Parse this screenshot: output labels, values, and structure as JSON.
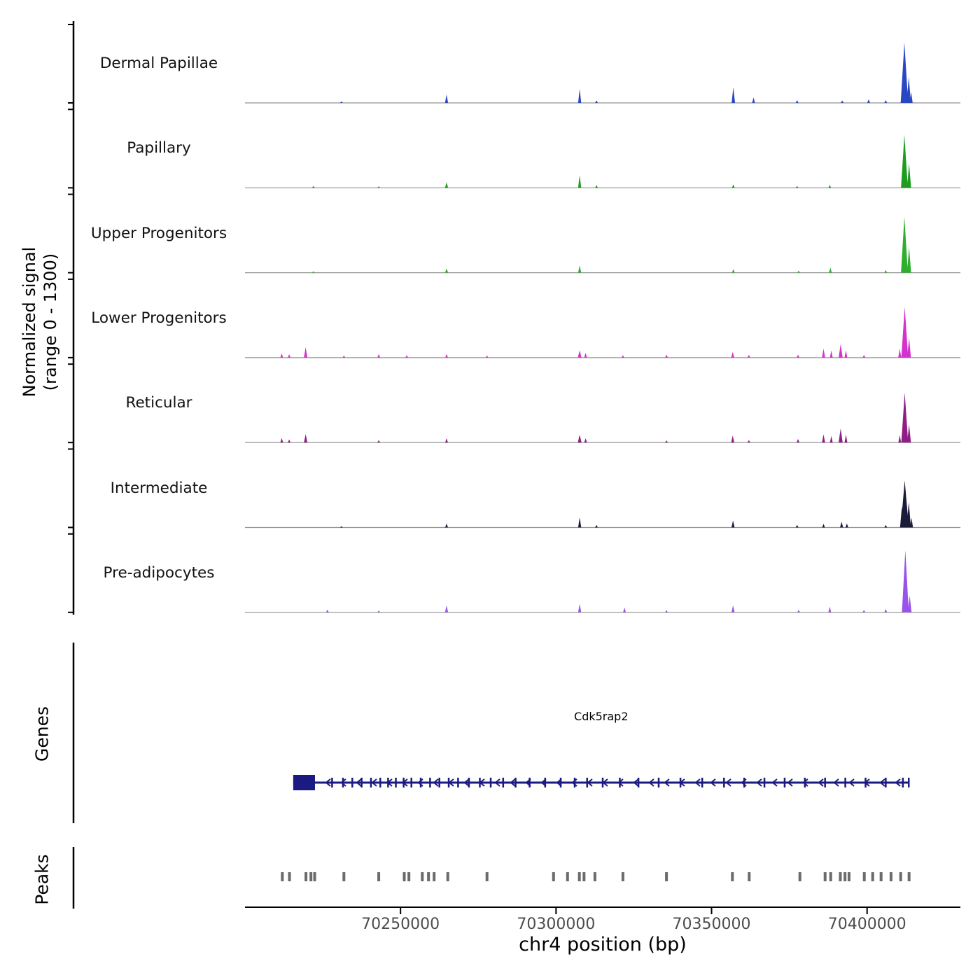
{
  "y_axis_label_line1": "Normalized signal",
  "y_axis_label_line2": "(range 0 - 1300)",
  "genes_label": "Genes",
  "peaks_label": "Peaks",
  "x_axis_label": "chr4 position (bp)",
  "chart_data": {
    "type": "area",
    "title": "",
    "genome": {
      "chrom": "chr4",
      "xmin": 70200000,
      "xmax": 70430000
    },
    "y_range": [
      0,
      1300
    ],
    "x_ticks": [
      {
        "pos": 70250000,
        "label": "70250000"
      },
      {
        "pos": 70300000,
        "label": "70300000"
      },
      {
        "pos": 70350000,
        "label": "70350000"
      },
      {
        "pos": 70400000,
        "label": "70400000"
      }
    ],
    "style": {
      "baseline_color": "#909090",
      "axis_color": "#000000",
      "tick_label_color": "#4d4d4d",
      "peak_mark_color": "#6b6b6b"
    },
    "tracks": [
      {
        "name": "Dermal Papillae",
        "color": "#2a47c3",
        "peaks": [
          [
            70231000,
            25,
            900
          ],
          [
            70264800,
            140,
            1000
          ],
          [
            70307600,
            230,
            1000
          ],
          [
            70313000,
            40,
            900
          ],
          [
            70357000,
            260,
            1100
          ],
          [
            70363500,
            90,
            900
          ],
          [
            70377500,
            45,
            900
          ],
          [
            70392000,
            40,
            900
          ],
          [
            70400500,
            60,
            900
          ],
          [
            70406000,
            45,
            900
          ],
          [
            70411300,
            250,
            1000
          ],
          [
            70412000,
            1000,
            2400
          ],
          [
            70413400,
            430,
            1400
          ],
          [
            70414200,
            180,
            900
          ]
        ]
      },
      {
        "name": "Papillary",
        "color": "#1f9c1f",
        "peaks": [
          [
            70222000,
            30,
            900
          ],
          [
            70243000,
            25,
            900
          ],
          [
            70264800,
            90,
            1000
          ],
          [
            70307600,
            210,
            1000
          ],
          [
            70313000,
            45,
            900
          ],
          [
            70357000,
            55,
            900
          ],
          [
            70377500,
            30,
            900
          ],
          [
            70388000,
            45,
            900
          ],
          [
            70412000,
            880,
            2200
          ],
          [
            70413500,
            400,
            1300
          ]
        ]
      },
      {
        "name": "Upper Progenitors",
        "color": "#2eae2e",
        "peaks": [
          [
            70222000,
            25,
            900
          ],
          [
            70264800,
            70,
            1000
          ],
          [
            70307600,
            120,
            1000
          ],
          [
            70357000,
            60,
            900
          ],
          [
            70378000,
            35,
            900
          ],
          [
            70388200,
            85,
            900
          ],
          [
            70406000,
            45,
            900
          ],
          [
            70412000,
            930,
            2200
          ],
          [
            70413500,
            420,
            1300
          ]
        ]
      },
      {
        "name": "Lower Progenitors",
        "color": "#d233cc",
        "peaks": [
          [
            70211800,
            70,
            900
          ],
          [
            70214200,
            55,
            900
          ],
          [
            70219500,
            175,
            1100
          ],
          [
            70231800,
            35,
            900
          ],
          [
            70243000,
            60,
            900
          ],
          [
            70252000,
            40,
            900
          ],
          [
            70264800,
            60,
            900
          ],
          [
            70277800,
            35,
            900
          ],
          [
            70307600,
            120,
            1200
          ],
          [
            70309500,
            80,
            900
          ],
          [
            70321500,
            40,
            900
          ],
          [
            70335500,
            50,
            900
          ],
          [
            70356800,
            95,
            1000
          ],
          [
            70362000,
            45,
            900
          ],
          [
            70377800,
            50,
            900
          ],
          [
            70386000,
            150,
            1000
          ],
          [
            70388500,
            120,
            900
          ],
          [
            70391500,
            225,
            1300
          ],
          [
            70393200,
            120,
            900
          ],
          [
            70399000,
            45,
            900
          ],
          [
            70410500,
            150,
            1000
          ],
          [
            70412100,
            840,
            2200
          ],
          [
            70413500,
            330,
            1200
          ]
        ]
      },
      {
        "name": "Reticular",
        "color": "#8f1d86",
        "peaks": [
          [
            70211800,
            75,
            900
          ],
          [
            70214200,
            50,
            900
          ],
          [
            70219500,
            140,
            1100
          ],
          [
            70243000,
            40,
            900
          ],
          [
            70264800,
            70,
            900
          ],
          [
            70307600,
            130,
            1200
          ],
          [
            70309500,
            70,
            900
          ],
          [
            70335500,
            35,
            900
          ],
          [
            70356800,
            115,
            1000
          ],
          [
            70362000,
            40,
            900
          ],
          [
            70377800,
            60,
            900
          ],
          [
            70386000,
            135,
            1000
          ],
          [
            70388500,
            110,
            900
          ],
          [
            70391500,
            235,
            1300
          ],
          [
            70393200,
            130,
            900
          ],
          [
            70410500,
            125,
            900
          ],
          [
            70412100,
            830,
            2200
          ],
          [
            70413500,
            300,
            1200
          ]
        ]
      },
      {
        "name": "Intermediate",
        "color": "#1b1b3a",
        "peaks": [
          [
            70231000,
            20,
            900
          ],
          [
            70264800,
            65,
            900
          ],
          [
            70307600,
            165,
            1000
          ],
          [
            70313000,
            40,
            900
          ],
          [
            70356900,
            115,
            1000
          ],
          [
            70377500,
            40,
            900
          ],
          [
            70386000,
            60,
            900
          ],
          [
            70391800,
            95,
            1000
          ],
          [
            70393500,
            65,
            900
          ],
          [
            70406000,
            40,
            900
          ],
          [
            70411200,
            350,
            1200
          ],
          [
            70412100,
            780,
            2600
          ],
          [
            70413400,
            420,
            1400
          ],
          [
            70414300,
            160,
            900
          ]
        ]
      },
      {
        "name": "Pre-adipocytes",
        "color": "#9a52ea",
        "peaks": [
          [
            70226500,
            45,
            900
          ],
          [
            70243000,
            30,
            900
          ],
          [
            70264800,
            115,
            1000
          ],
          [
            70307600,
            140,
            1000
          ],
          [
            70322000,
            80,
            900
          ],
          [
            70335500,
            35,
            900
          ],
          [
            70356900,
            115,
            1000
          ],
          [
            70378000,
            40,
            900
          ],
          [
            70388000,
            95,
            900
          ],
          [
            70399000,
            40,
            900
          ],
          [
            70406000,
            55,
            900
          ],
          [
            70412300,
            1030,
            2200
          ],
          [
            70413700,
            280,
            1200
          ]
        ]
      }
    ],
    "gene": {
      "label": "Cdk5rap2",
      "color": "#1a1a80",
      "strand": "-",
      "start": 70215500,
      "end": 70413500,
      "thick_start": 70215500,
      "thick_end": 70222500,
      "exons": [
        70228000,
        70231500,
        70234500,
        70237500,
        70240500,
        70243500,
        70246000,
        70248500,
        70251000,
        70253500,
        70256500,
        70259500,
        70262500,
        70265500,
        70268500,
        70272000,
        70275500,
        70279000,
        70283000,
        70287000,
        70291500,
        70296500,
        70301500,
        70306000,
        70310000,
        70315000,
        70320500,
        70326500,
        70333000,
        70340000,
        70347000,
        70354000,
        70360500,
        70367000,
        70373500,
        70380000,
        70386500,
        70393000,
        70399500,
        70406000,
        70411500,
        70413400
      ]
    },
    "peaks_track": {
      "positions": [
        70212000,
        70214300,
        70219600,
        70221200,
        70222400,
        70231800,
        70243000,
        70251200,
        70252700,
        70257000,
        70259000,
        70260800,
        70265200,
        70277800,
        70299200,
        70303700,
        70307500,
        70309000,
        70312500,
        70321500,
        70335500,
        70356700,
        70362100,
        70378400,
        70386500,
        70388300,
        70391400,
        70392900,
        70394200,
        70399100,
        70401800,
        70404500,
        70407700,
        70410800,
        70413500
      ]
    }
  }
}
